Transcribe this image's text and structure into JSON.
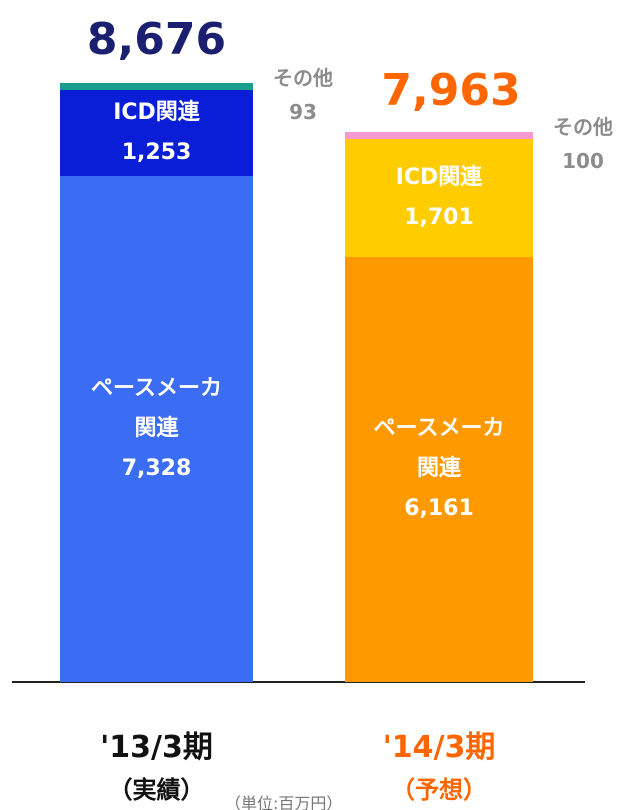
{
  "chart_data": {
    "type": "stacked_bar",
    "categories": [
      "'13/3期",
      "'14/3期"
    ],
    "category_colors": [
      "#111111",
      "#ff6600"
    ],
    "sublabels": [
      "（実績）",
      "（予想）"
    ],
    "totals": [
      8676,
      7963
    ],
    "total_labels": [
      "8,676",
      "7,963"
    ],
    "total_colors": [
      "#1a1f70",
      "#ff6600"
    ],
    "unit": "（単位:百万円）",
    "ylim": [
      0,
      9000
    ],
    "series": [
      {
        "name": "ペースメーカ\n関連",
        "colors": [
          "#3a6cf4",
          "#ff9900"
        ],
        "values": [
          7328,
          6161
        ],
        "value_labels": [
          "7,328",
          "6,161"
        ]
      },
      {
        "name": "ICD関連",
        "colors": [
          "#0a1ed8",
          "#ffcc00"
        ],
        "values": [
          1253,
          1701
        ],
        "value_labels": [
          "1,253",
          "1,701"
        ]
      },
      {
        "name": "その他",
        "colors": [
          "#1a9e8e",
          "#f59ad0"
        ],
        "values": [
          93,
          100
        ],
        "value_labels": [
          "93",
          "100"
        ]
      }
    ]
  }
}
